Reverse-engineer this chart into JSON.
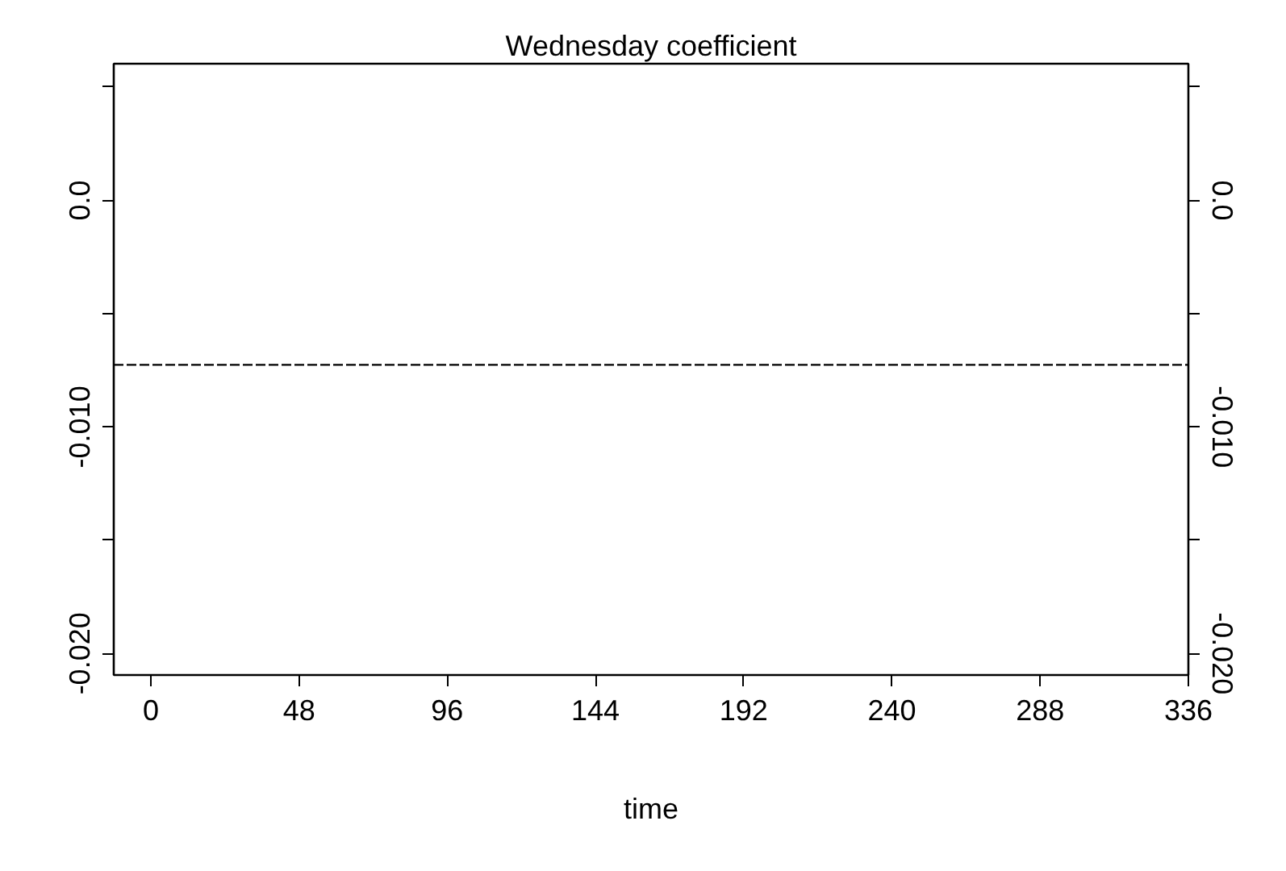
{
  "chart_data": {
    "type": "line",
    "title": "Wednesday coefficient",
    "xlabel": "time",
    "series": [
      {
        "color": "#000000",
        "x": [
          -12,
          336
        ],
        "values": [
          -0.00726,
          -0.00726
        ]
      }
    ],
    "line_style": "dashed",
    "xlim": [
      -12,
      336
    ],
    "xticks": [
      0,
      48,
      96,
      144,
      192,
      240,
      288,
      336
    ],
    "ylim": [
      -0.02095,
      0.00603
    ],
    "yticks": [
      {
        "value": 0.005,
        "label": null
      },
      {
        "value": 0,
        "label": "0.0"
      },
      {
        "value": -0.005,
        "label": null
      },
      {
        "value": -0.01,
        "label": "-0.010"
      },
      {
        "value": -0.015,
        "label": null
      },
      {
        "value": -0.02,
        "label": "-0.020"
      }
    ],
    "y2lim": [
      -0.02095,
      0.00603
    ],
    "y2ticks": [
      {
        "value": 0.005,
        "label": null
      },
      {
        "value": 0,
        "label": "0.0"
      },
      {
        "value": -0.005,
        "label": null
      },
      {
        "value": -0.01,
        "label": "-0.010"
      },
      {
        "value": -0.015,
        "label": null
      },
      {
        "value": -0.02,
        "label": "-0.020"
      }
    ]
  }
}
